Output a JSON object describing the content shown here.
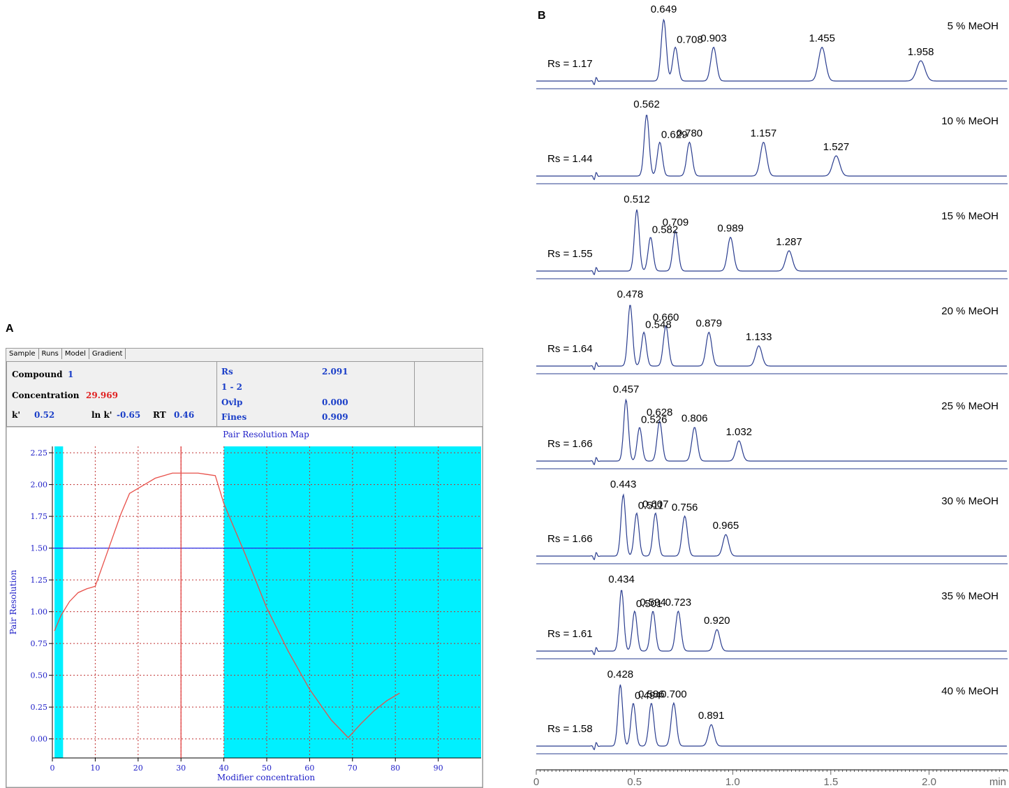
{
  "panel_a": {
    "letter": "A",
    "tabs": [
      "Sample",
      "Runs",
      "Model",
      "Gradient"
    ],
    "active_tab": "Model",
    "info": {
      "compound_label": "Compound",
      "compound_value": "1",
      "concentration_label": "Concentration",
      "concentration_value": "29.969",
      "k_label": "k'",
      "k_value": "0.52",
      "lnk_label": "ln k'",
      "lnk_value": "-0.65",
      "rt_label": "RT",
      "rt_value": "0.46",
      "rs_label": "Rs",
      "rs_value": "2.091",
      "pair_label": "1 - 2",
      "ovlp_label": "Ovlp",
      "ovlp_value": "0.000",
      "fines_label": "Fines",
      "fines_value": "0.909"
    }
  },
  "panel_b": {
    "letter": "B",
    "x_ticks": [
      "0",
      "0.5",
      "1.0",
      "1.5",
      "2.0"
    ],
    "x_unit": "min"
  },
  "colors": {
    "curve": "#e8504a",
    "grid": "#c03030",
    "cyan": "#00f0ff",
    "axis_text": "#2020c8",
    "trace": "#2a3d8f"
  },
  "chart_data": [
    {
      "type": "line",
      "title": "Pair Resolution Map",
      "xlabel": "Modifier concentration",
      "ylabel": "Pair Resolution",
      "xlim": [
        0,
        100
      ],
      "ylim": [
        -0.15,
        2.3
      ],
      "x_ticks": [
        0,
        10,
        20,
        30,
        40,
        50,
        60,
        70,
        80,
        90
      ],
      "y_ticks": [
        "0.00",
        "0.25",
        "0.50",
        "0.75",
        "1.00",
        "1.25",
        "1.50",
        "1.75",
        "2.00",
        "2.25"
      ],
      "horizontal_line": 1.5,
      "vertical_line": 30,
      "shaded_ranges": [
        [
          0.5,
          2.5
        ],
        [
          40,
          100
        ]
      ],
      "series": [
        {
          "x": [
            0.5,
            2,
            4,
            6,
            8,
            10,
            12,
            14,
            16,
            18,
            20,
            22,
            24,
            26,
            28,
            30,
            32,
            34,
            36,
            38,
            40,
            45,
            50,
            55,
            60,
            65,
            69,
            72,
            75,
            78,
            81
          ],
          "y": [
            0.85,
            0.97,
            1.08,
            1.15,
            1.18,
            1.2,
            1.39,
            1.58,
            1.77,
            1.93,
            1.97,
            2.01,
            2.05,
            2.07,
            2.09,
            2.09,
            2.09,
            2.09,
            2.08,
            2.07,
            1.85,
            1.45,
            1.03,
            0.69,
            0.39,
            0.15,
            0.01,
            0.12,
            0.22,
            0.3,
            0.36
          ]
        }
      ]
    },
    {
      "type": "line",
      "xlabel": "min",
      "xlim": [
        0,
        2.4
      ],
      "x_ticks": [
        0,
        0.5,
        1.0,
        1.5,
        2.0
      ],
      "series": [
        {
          "name": "5 % MeOH",
          "rs": "Rs = 1.17",
          "peaks": [
            0.649,
            0.708,
            0.903,
            1.455,
            1.958
          ],
          "heights": [
            1.0,
            0.55,
            0.55,
            0.55,
            0.33
          ]
        },
        {
          "name": "10 % MeOH",
          "rs": "Rs = 1.44",
          "peaks": [
            0.562,
            0.629,
            0.78,
            1.157,
            1.527
          ],
          "heights": [
            1.0,
            0.55,
            0.55,
            0.55,
            0.33
          ]
        },
        {
          "name": "15 % MeOH",
          "rs": "Rs = 1.55",
          "peaks": [
            0.512,
            0.582,
            0.709,
            0.989,
            1.287
          ],
          "heights": [
            1.0,
            0.55,
            0.65,
            0.55,
            0.33
          ]
        },
        {
          "name": "20 % MeOH",
          "rs": "Rs = 1.64",
          "peaks": [
            0.478,
            0.548,
            0.66,
            0.879,
            1.133
          ],
          "heights": [
            1.0,
            0.55,
            0.65,
            0.55,
            0.33
          ]
        },
        {
          "name": "25 % MeOH",
          "rs": "Rs = 1.66",
          "peaks": [
            0.457,
            0.526,
            0.628,
            0.806,
            1.032
          ],
          "heights": [
            1.0,
            0.55,
            0.65,
            0.55,
            0.33
          ]
        },
        {
          "name": "30 % MeOH",
          "rs": "Rs = 1.66",
          "peaks": [
            0.443,
            0.511,
            0.607,
            0.756,
            0.965
          ],
          "heights": [
            1.0,
            0.7,
            0.7,
            0.65,
            0.35
          ]
        },
        {
          "name": "35 % MeOH",
          "rs": "Rs = 1.61",
          "peaks": [
            0.434,
            0.501,
            0.594,
            0.723,
            0.92
          ],
          "heights": [
            1.0,
            0.65,
            0.65,
            0.65,
            0.35
          ]
        },
        {
          "name": "40 % MeOH",
          "rs": "Rs = 1.58",
          "peaks": [
            0.428,
            0.494,
            0.586,
            0.7,
            0.891
          ],
          "heights": [
            1.0,
            0.7,
            0.7,
            0.7,
            0.35
          ]
        }
      ]
    }
  ]
}
